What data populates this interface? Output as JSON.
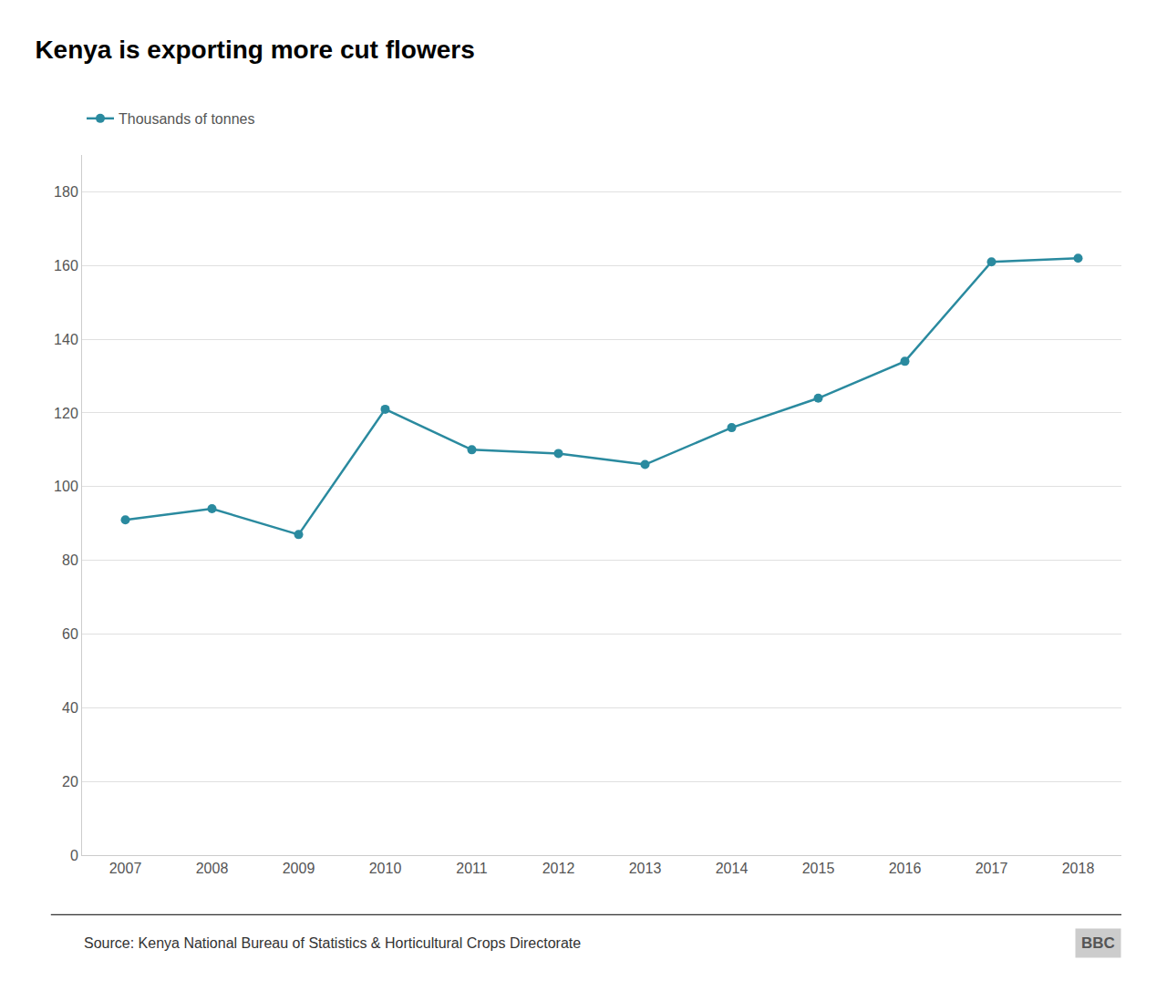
{
  "chart_data": {
    "type": "line",
    "title": "Kenya is exporting more cut flowers",
    "x": [
      2007,
      2008,
      2009,
      2010,
      2011,
      2012,
      2013,
      2014,
      2015,
      2016,
      2017,
      2018
    ],
    "series": [
      {
        "name": "Thousands of tonnes",
        "color": "#2a8a9f",
        "marker": "circle",
        "line_style": "solid",
        "values": [
          91,
          94,
          87,
          121,
          110,
          109,
          106,
          116,
          124,
          134,
          161,
          162
        ]
      }
    ],
    "xlim": [
      2006.5,
      2018.5
    ],
    "xticks": [
      2007,
      2008,
      2009,
      2010,
      2011,
      2012,
      2013,
      2014,
      2015,
      2016,
      2017,
      2018
    ],
    "ylim": [
      0,
      190
    ],
    "yticks": [
      0,
      20,
      40,
      60,
      80,
      100,
      120,
      140,
      160,
      180
    ],
    "grid": true,
    "legend": "top-left",
    "annotations": [
      "Source: Kenya National Bureau of Statistics & Horticultural Crops Directorate",
      "BBC"
    ]
  }
}
